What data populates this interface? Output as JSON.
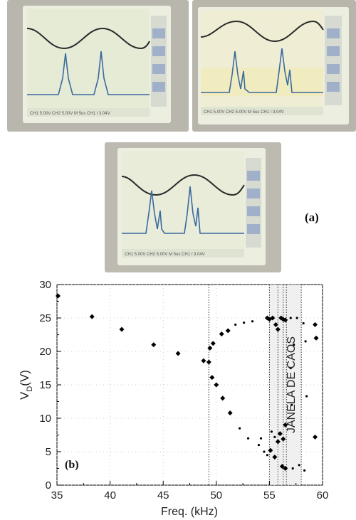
{
  "figure": {
    "panel_a_label": "(a)",
    "panel_b_label": "(b)"
  },
  "oscilloscope_photos": [
    {
      "name": "top-left",
      "readout": "CH1 5.00V   CH2 5.00V   M 5us   CH1 / 3.04V"
    },
    {
      "name": "top-right",
      "readout": "CH1 5.00V   CH2 5.00V   M 5us   CH1 / 3.04V"
    },
    {
      "name": "center",
      "readout": "CH1 5.00V   CH2 5.00V   M 5us   CH1 / 3.04V"
    }
  ],
  "chart_data": {
    "type": "scatter",
    "title": "",
    "xlabel": "Freq. (kHz)",
    "ylabel_main": "V",
    "ylabel_sub": "D",
    "ylabel_tail": "(V)",
    "xlim": [
      35,
      60
    ],
    "ylim": [
      0,
      30
    ],
    "xticks": [
      35,
      40,
      45,
      50,
      55,
      60
    ],
    "yticks": [
      0,
      5,
      10,
      15,
      20,
      25,
      30
    ],
    "annotation": "JANELA DE CAOS",
    "vertical_lines": [
      49.3,
      55.0,
      55.8,
      56.3,
      56.6,
      58.0
    ],
    "shaded_band": [
      55.0,
      58.0
    ],
    "points_large": [
      [
        35.1,
        28.3
      ],
      [
        38.3,
        25.2
      ],
      [
        41.1,
        23.3
      ],
      [
        44.1,
        21.0
      ],
      [
        46.4,
        19.7
      ],
      [
        48.8,
        18.6
      ],
      [
        49.3,
        18.4
      ],
      [
        49.4,
        20.5
      ],
      [
        49.7,
        21.2
      ],
      [
        49.6,
        16.1
      ],
      [
        50.0,
        15.0
      ],
      [
        50.5,
        22.6
      ],
      [
        50.6,
        13.0
      ],
      [
        51.1,
        23.1
      ],
      [
        51.3,
        10.8
      ],
      [
        54.8,
        25.0
      ],
      [
        55.0,
        24.8
      ],
      [
        55.3,
        25.0
      ],
      [
        55.6,
        24.0
      ],
      [
        55.8,
        23.3
      ],
      [
        56.1,
        25.0
      ],
      [
        56.3,
        24.8
      ],
      [
        56.5,
        24.7
      ],
      [
        55.1,
        5.2
      ],
      [
        55.5,
        4.2
      ],
      [
        55.8,
        6.5
      ],
      [
        56.0,
        7.7
      ],
      [
        56.3,
        6.9
      ],
      [
        56.5,
        9.0
      ],
      [
        56.2,
        2.8
      ],
      [
        56.5,
        2.5
      ],
      [
        59.3,
        24.0
      ],
      [
        59.4,
        22.0
      ],
      [
        59.3,
        7.2
      ]
    ],
    "points_small": [
      [
        51.8,
        24.0
      ],
      [
        52.6,
        24.3
      ],
      [
        53.4,
        24.5
      ],
      [
        52.2,
        8.5
      ],
      [
        53.0,
        7.0
      ],
      [
        54.0,
        6.0
      ],
      [
        54.5,
        5.0
      ],
      [
        54.8,
        4.5
      ],
      [
        57.0,
        25.0
      ],
      [
        57.6,
        25.0
      ],
      [
        58.2,
        24.2
      ],
      [
        57.3,
        21.0
      ],
      [
        58.4,
        21.5
      ],
      [
        57.2,
        2.5
      ],
      [
        57.8,
        3.0
      ],
      [
        58.3,
        2.2
      ],
      [
        55.5,
        7.2
      ],
      [
        54.2,
        7.0
      ],
      [
        57.1,
        12.0
      ],
      [
        58.5,
        13.3
      ],
      [
        57.0,
        17.5
      ],
      [
        55.2,
        8.0
      ]
    ]
  }
}
